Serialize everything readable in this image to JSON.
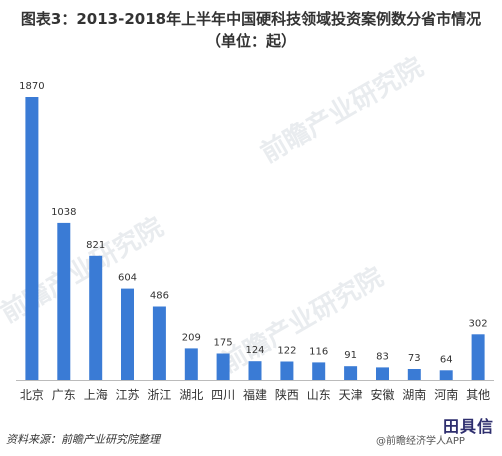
{
  "title": {
    "line1": "图表3：2013-2018年上半年中国硬科技领域投资案例数分省市情况",
    "line2": "（单位：起）"
  },
  "chart_data": {
    "type": "bar",
    "categories": [
      "北京",
      "广东",
      "上海",
      "江苏",
      "浙江",
      "湖北",
      "四川",
      "福建",
      "陕西",
      "山东",
      "天津",
      "安徽",
      "湖南",
      "河南",
      "其他"
    ],
    "values": [
      1870,
      1038,
      821,
      604,
      486,
      209,
      175,
      124,
      122,
      116,
      91,
      83,
      73,
      64,
      302
    ],
    "ylim": [
      0,
      2000
    ],
    "grid": false,
    "legend": "none",
    "bar_color": "#3a7bd5"
  },
  "footer": {
    "source": "资料来源：前瞻产业研究院整理",
    "app_credit": "@前瞻经济学人APP"
  },
  "watermark_text": "前瞻产业研究院",
  "brand_mark_text": "田具信"
}
